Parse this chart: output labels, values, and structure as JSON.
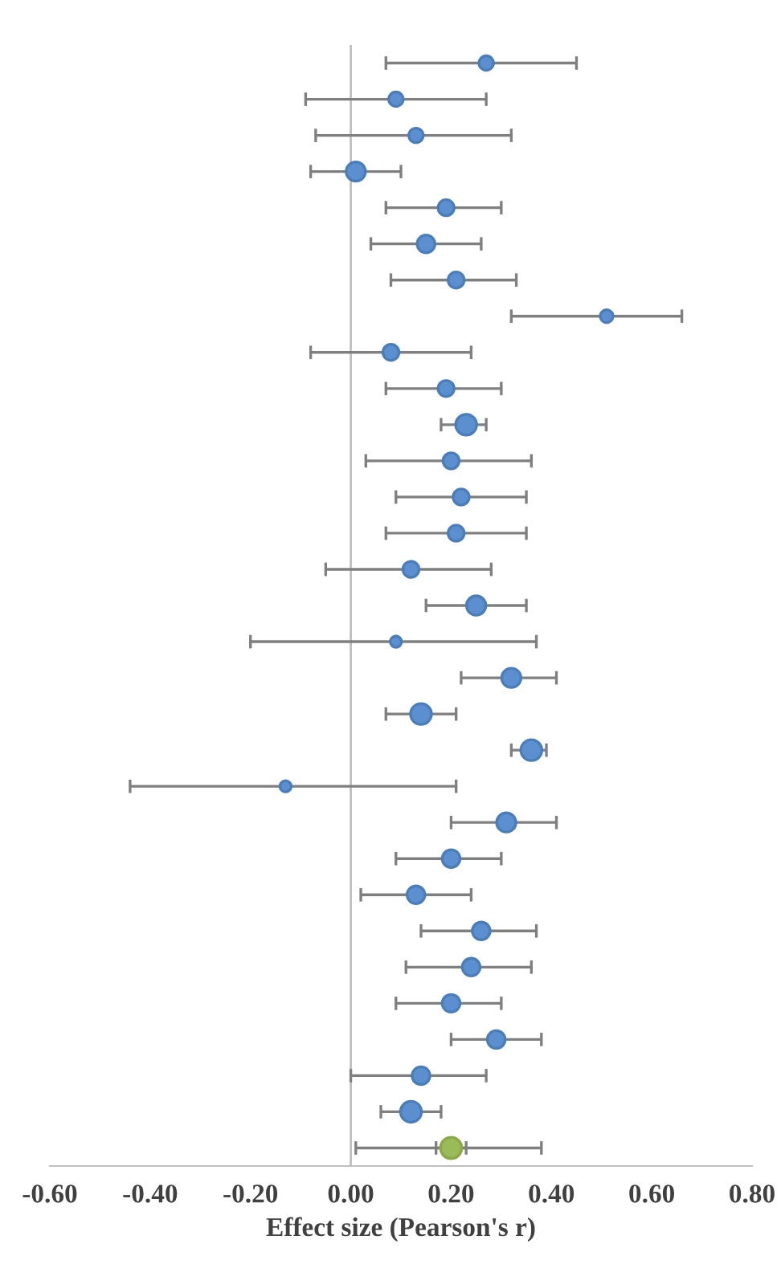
{
  "chart_data": {
    "type": "bubble",
    "orientation": "horizontal",
    "xlabel": "Effect size (Pearson's r)",
    "categories": [
      null,
      null,
      null,
      null,
      null,
      null,
      null,
      null,
      null,
      null,
      null,
      null,
      null,
      null,
      null,
      null,
      null,
      null,
      null,
      null,
      null,
      null,
      null,
      null,
      null,
      null,
      null,
      null,
      null,
      null,
      null
    ],
    "xlim": [
      -0.6,
      0.8
    ],
    "xticks": [
      {
        "value": -0.6,
        "label": "-0.60"
      },
      {
        "value": -0.4,
        "label": "-0.40"
      },
      {
        "value": -0.2,
        "label": "-0.20"
      },
      {
        "value": 0,
        "label": "0.00"
      },
      {
        "value": 0.2,
        "label": "0.20"
      },
      {
        "value": 0.4,
        "label": "0.40"
      },
      {
        "value": 0.6,
        "label": "0.60"
      },
      {
        "value": 0.8,
        "label": "0.80"
      }
    ],
    "tick_labels": "x",
    "grid": false,
    "ref_lines": [
      {
        "axis": "x",
        "value": 0,
        "color": "#bfbfbf"
      }
    ],
    "legend": false,
    "marker": "circle",
    "series": [
      {
        "color": "#5b8fd0",
        "values": [
          0.27,
          0.09,
          0.13,
          0.01,
          0.19,
          0.15,
          0.21,
          0.51,
          0.08,
          0.19,
          0.23,
          0.2,
          0.22,
          0.21,
          0.12,
          0.25,
          0.09,
          0.32,
          0.14,
          0.36,
          -0.13,
          0.31,
          0.2,
          0.13,
          0.26,
          0.24,
          0.2,
          0.29,
          0.14,
          0.12,
          null
        ],
        "sizes": [
          0.48,
          0.48,
          0.48,
          0.85,
          0.59,
          0.72,
          0.59,
          0.38,
          0.59,
          0.59,
          1,
          0.59,
          0.59,
          0.59,
          0.59,
          0.85,
          0.29,
          0.85,
          1,
          1,
          0.29,
          0.85,
          0.72,
          0.72,
          0.72,
          0.72,
          0.72,
          0.72,
          0.72,
          1,
          null
        ],
        "errors": [
          [
            0.07,
            0.45
          ],
          [
            -0.09,
            0.27
          ],
          [
            -0.07,
            0.32
          ],
          [
            -0.08,
            0.1
          ],
          [
            0.07,
            0.3
          ],
          [
            0.04,
            0.26
          ],
          [
            0.08,
            0.33
          ],
          [
            0.32,
            0.66
          ],
          [
            -0.08,
            0.24
          ],
          [
            0.07,
            0.3
          ],
          [
            0.18,
            0.27
          ],
          [
            0.03,
            0.36
          ],
          [
            0.09,
            0.35
          ],
          [
            0.07,
            0.35
          ],
          [
            -0.05,
            0.28
          ],
          [
            0.15,
            0.35
          ],
          [
            -0.2,
            0.37
          ],
          [
            0.22,
            0.41
          ],
          [
            0.07,
            0.21
          ],
          [
            0.32,
            0.39
          ],
          [
            -0.44,
            0.21
          ],
          [
            0.2,
            0.41
          ],
          [
            0.09,
            0.3
          ],
          [
            0.02,
            0.24
          ],
          [
            0.14,
            0.37
          ],
          [
            0.11,
            0.36
          ],
          [
            0.09,
            0.3
          ],
          [
            0.2,
            0.38
          ],
          [
            0.0,
            0.27
          ],
          [
            0.06,
            0.18
          ],
          null
        ]
      },
      {
        "color": "#9bbb59",
        "values": [
          null,
          null,
          null,
          null,
          null,
          null,
          null,
          null,
          null,
          null,
          null,
          null,
          null,
          null,
          null,
          null,
          null,
          null,
          null,
          null,
          null,
          null,
          null,
          null,
          null,
          null,
          null,
          null,
          null,
          null,
          0.2
        ],
        "sizes": [
          null,
          null,
          null,
          null,
          null,
          null,
          null,
          null,
          null,
          null,
          null,
          null,
          null,
          null,
          null,
          null,
          null,
          null,
          null,
          null,
          null,
          null,
          null,
          null,
          null,
          null,
          null,
          null,
          null,
          null,
          1
        ],
        "errors": [
          null,
          null,
          null,
          null,
          null,
          null,
          null,
          null,
          null,
          null,
          null,
          null,
          null,
          null,
          null,
          null,
          null,
          null,
          null,
          null,
          null,
          null,
          null,
          null,
          null,
          null,
          null,
          null,
          null,
          null,
          [
            0.17,
            0.23
          ]
        ]
      },
      {
        "color": "#9bbb59",
        "sizes": [
          null,
          null,
          null,
          null,
          null,
          null,
          null,
          null,
          null,
          null,
          null,
          null,
          null,
          null,
          null,
          null,
          null,
          null,
          null,
          null,
          null,
          null,
          null,
          null,
          null,
          null,
          null,
          null,
          null,
          null,
          1
        ],
        "values": [
          null,
          null,
          null,
          null,
          null,
          null,
          null,
          null,
          null,
          null,
          null,
          null,
          null,
          null,
          null,
          null,
          null,
          null,
          null,
          null,
          null,
          null,
          null,
          null,
          null,
          null,
          null,
          null,
          null,
          null,
          0.2
        ],
        "errors": [
          null,
          null,
          null,
          null,
          null,
          null,
          null,
          null,
          null,
          null,
          null,
          null,
          null,
          null,
          null,
          null,
          null,
          null,
          null,
          null,
          null,
          null,
          null,
          null,
          null,
          null,
          null,
          null,
          null,
          null,
          [
            0.01,
            0.38
          ]
        ]
      }
    ]
  }
}
